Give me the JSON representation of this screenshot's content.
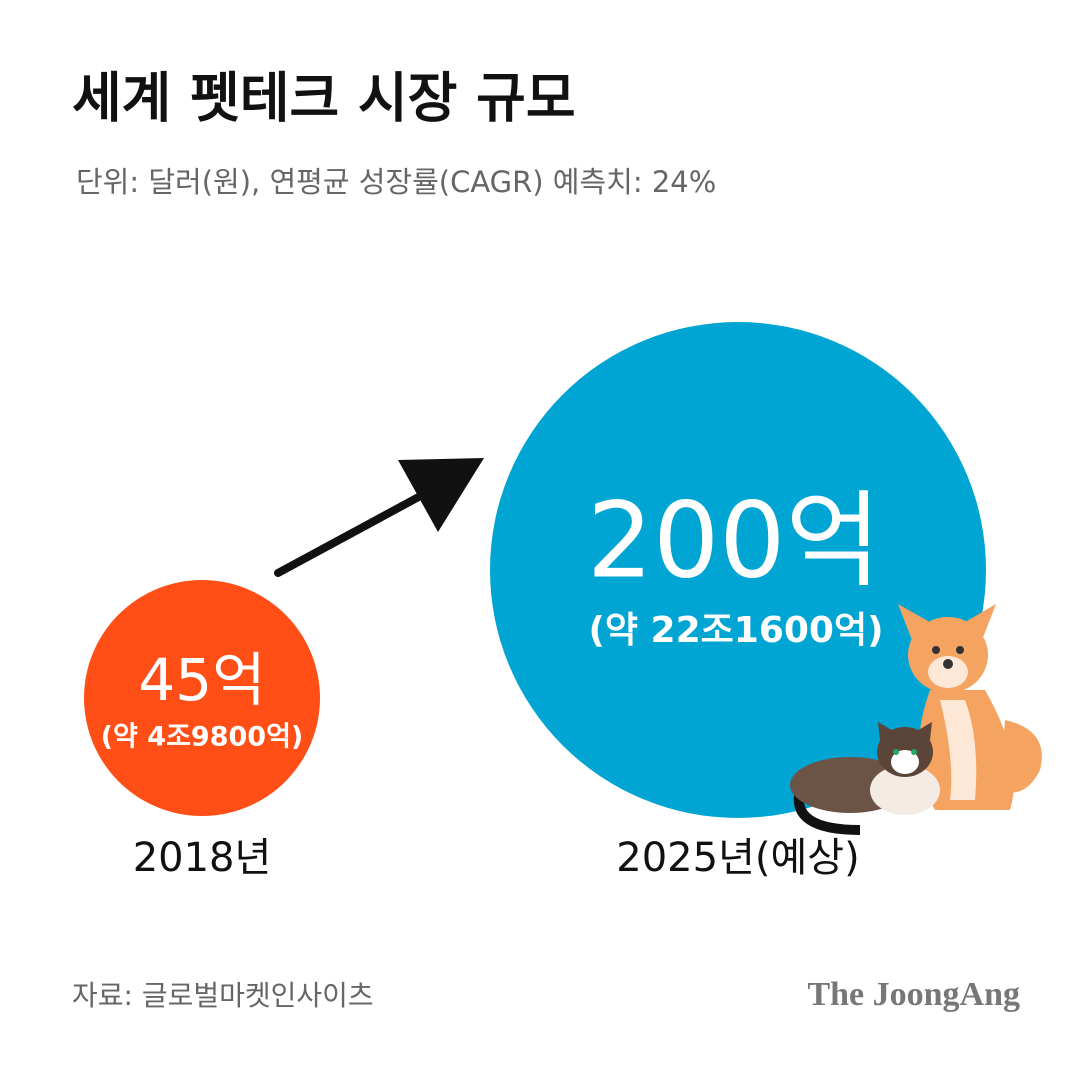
{
  "header": {
    "title": "세계 펫테크 시장 규모",
    "subtitle": "단위: 달러(원), 연평균 성장률(CAGR) 예측치: 24%"
  },
  "items": [
    {
      "value": "45억",
      "note": "(약 4조9800억)",
      "year": "2018년"
    },
    {
      "value": "200억",
      "note": "(약 22조1600억)",
      "year": "2025년(예상)"
    }
  ],
  "footer": {
    "source": "자료: 글로벌마켓인사이츠",
    "logo": "The JoongAng"
  }
}
